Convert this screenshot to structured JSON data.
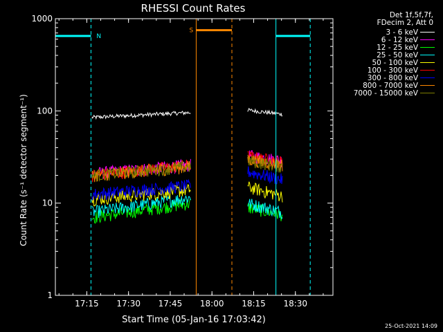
{
  "chart_data": {
    "type": "line",
    "title": "RHESSI Count Rates",
    "xlabel": "Start Time (05-Jan-16 17:03:42)",
    "ylabel": "Count Rate (s⁻¹ detector segment⁻¹)",
    "y_scale": "log",
    "ylim": [
      1,
      1000
    ],
    "xlim": [
      "17:03:42",
      "18:43:30"
    ],
    "x_ticks": [
      "17:15",
      "17:30",
      "17:45",
      "18:00",
      "18:15",
      "18:30"
    ],
    "y_ticks": [
      "1",
      "10",
      "100",
      "1000"
    ],
    "grid": false,
    "legend_position": "top-right",
    "legend_header": [
      "Det 1f,5f,7f,",
      "FDecim 2, Att 0"
    ],
    "segments": [
      {
        "start": "17:16:50",
        "end": "17:52:20"
      },
      {
        "start": "18:12:50",
        "end": "18:25:20"
      }
    ],
    "series": [
      {
        "name": "3 - 6 keV",
        "color": "#ffffff",
        "segment_levels": [
          [
            85,
            96
          ],
          [
            102,
            92
          ]
        ]
      },
      {
        "name": "6 - 12 keV",
        "color": "#ff00ff",
        "segment_levels": [
          [
            21,
            26
          ],
          [
            33,
            29
          ]
        ]
      },
      {
        "name": "12 - 25 keV",
        "color": "#00ff00",
        "segment_levels": [
          [
            7,
            10
          ],
          [
            9,
            7.5
          ]
        ]
      },
      {
        "name": "25 - 50 keV",
        "color": "#00ffff",
        "segment_levels": [
          [
            8,
            11.5
          ],
          [
            10,
            8
          ]
        ]
      },
      {
        "name": "50 - 100 keV",
        "color": "#ffff00",
        "segment_levels": [
          [
            11,
            14
          ],
          [
            15,
            12
          ]
        ]
      },
      {
        "name": "100 - 300 keV",
        "color": "#ff0000",
        "segment_levels": [
          [
            20,
            26
          ],
          [
            32,
            28
          ]
        ]
      },
      {
        "name": "300 - 800 keV",
        "color": "#0000ff",
        "segment_levels": [
          [
            12.5,
            15.5
          ],
          [
            22,
            18
          ]
        ]
      },
      {
        "name": "800 - 7000 keV",
        "color": "#ff8800",
        "segment_levels": [
          [
            20,
            25
          ],
          [
            30,
            26
          ]
        ]
      },
      {
        "name": "7000 - 15000 keV",
        "color": "#808000",
        "segment_levels": [
          [
            20,
            25
          ],
          [
            29,
            25
          ]
        ]
      }
    ],
    "annotations": [
      {
        "label": "N",
        "color": "#00ffff",
        "bar": [
          "17:03:42",
          "17:16:30"
        ],
        "bar_level": 650
      },
      {
        "label": "S",
        "color": "#ff8800",
        "bar": [
          "17:54:20",
          "18:07:10"
        ],
        "bar_level": 750
      },
      {
        "label": "",
        "color": "#00ffff",
        "bar": [
          "18:23:00",
          "18:35:20"
        ],
        "bar_level": 650
      }
    ],
    "vertical_markers": [
      {
        "time": "17:03:42",
        "color": "#00ffff",
        "style": "solid"
      },
      {
        "time": "17:16:30",
        "color": "#00ffff",
        "style": "dashed"
      },
      {
        "time": "17:54:20",
        "color": "#ff8800",
        "style": "solid"
      },
      {
        "time": "18:07:10",
        "color": "#ff8800",
        "style": "dashed"
      },
      {
        "time": "18:23:00",
        "color": "#00ffff",
        "style": "solid"
      },
      {
        "time": "18:35:20",
        "color": "#00ffff",
        "style": "dashed"
      }
    ]
  },
  "footer": {
    "timestamp": "25-Oct-2021 14:09"
  }
}
